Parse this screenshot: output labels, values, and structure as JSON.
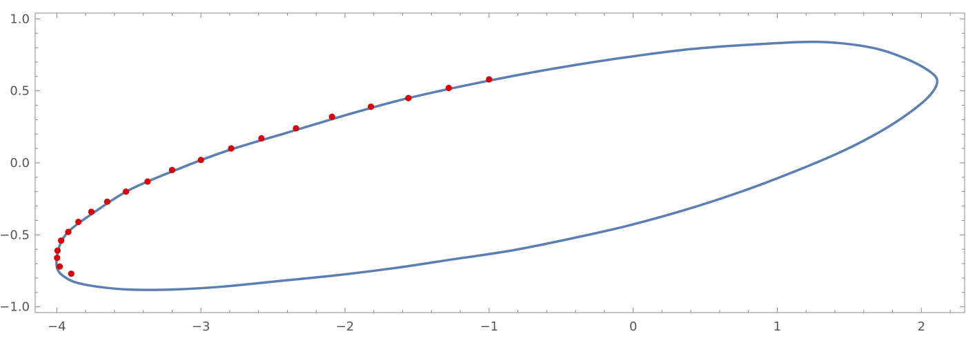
{
  "chart_data": {
    "type": "scatter",
    "title": "",
    "xlabel": "",
    "ylabel": "",
    "xlim": [
      -4.15,
      2.3
    ],
    "ylim": [
      -1.04,
      1.04
    ],
    "grid": false,
    "frame": true,
    "x_ticks": [
      -4,
      -3,
      -2,
      -1,
      0,
      1,
      2
    ],
    "x_tick_labels": [
      "−4",
      "−3",
      "−2",
      "−1",
      "0",
      "1",
      "2"
    ],
    "y_ticks": [
      -1.0,
      -0.5,
      0.0,
      0.5,
      1.0
    ],
    "y_tick_labels": [
      "−1.0",
      "−0.5",
      "0.0",
      "0.5",
      "1.0"
    ],
    "colors": {
      "curve": "#5b7fb3",
      "points": "#d90000",
      "axis": "#888888",
      "tick_text": "#555555"
    },
    "series": [
      {
        "kind": "line",
        "closed": true,
        "x": [
          2.11,
          2.06,
          1.92,
          1.72,
          1.45,
          1.12,
          0.75,
          0.35,
          -0.05,
          -0.45,
          -0.85,
          -1.25,
          -1.65,
          -2.05,
          -2.45,
          -2.85,
          -3.2,
          -3.5,
          -3.72,
          -3.87,
          -3.95,
          -3.995,
          -4.0,
          -3.97,
          -3.9,
          -3.75,
          -3.5,
          -3.15,
          -2.8,
          -2.4,
          -2.0,
          -1.6,
          -1.2,
          -0.8,
          -0.4,
          0.0,
          0.4,
          0.8,
          1.2,
          1.45,
          1.7,
          1.9,
          2.05,
          2.11
        ],
        "y": [
          0.57,
          0.47,
          0.35,
          0.22,
          0.08,
          -0.06,
          -0.2,
          -0.33,
          -0.44,
          -0.53,
          -0.61,
          -0.67,
          -0.73,
          -0.78,
          -0.82,
          -0.86,
          -0.88,
          -0.88,
          -0.86,
          -0.83,
          -0.79,
          -0.74,
          -0.66,
          -0.55,
          -0.46,
          -0.35,
          -0.19,
          -0.04,
          0.09,
          0.21,
          0.33,
          0.44,
          0.53,
          0.61,
          0.68,
          0.74,
          0.79,
          0.82,
          0.84,
          0.83,
          0.79,
          0.72,
          0.64,
          0.57
        ]
      },
      {
        "kind": "points",
        "x": [
          -1.0,
          -1.28,
          -1.56,
          -1.82,
          -2.09,
          -2.34,
          -2.58,
          -2.79,
          -3.0,
          -3.2,
          -3.37,
          -3.52,
          -3.65,
          -3.76,
          -3.85,
          -3.92,
          -3.97,
          -3.995,
          -3.998,
          -3.98,
          -3.9
        ],
        "y": [
          0.58,
          0.52,
          0.45,
          0.39,
          0.32,
          0.24,
          0.17,
          0.1,
          0.02,
          -0.05,
          -0.13,
          -0.2,
          -0.27,
          -0.34,
          -0.41,
          -0.48,
          -0.54,
          -0.61,
          -0.66,
          -0.72,
          -0.77
        ]
      }
    ]
  }
}
